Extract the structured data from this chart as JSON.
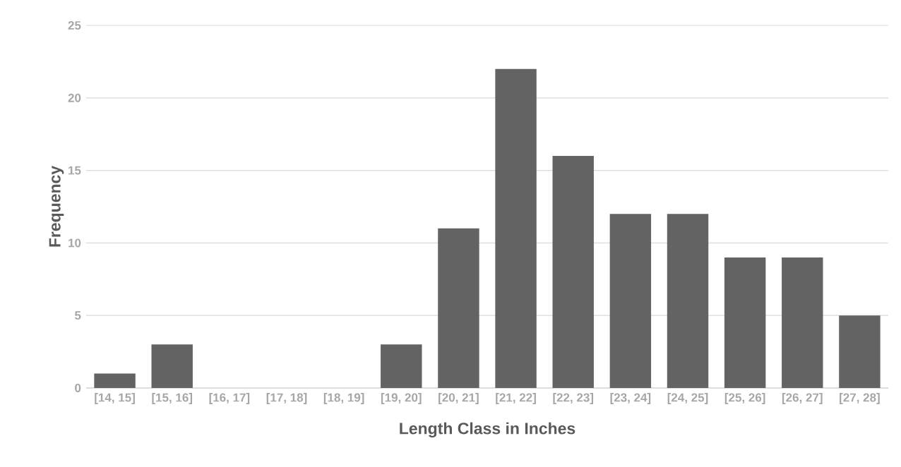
{
  "chart_data": {
    "type": "bar",
    "xlabel": "Length Class in Inches",
    "ylabel": "Frequency",
    "categories": [
      "[14, 15]",
      "[15, 16]",
      "[16, 17]",
      "[17, 18]",
      "[18, 19]",
      "[19, 20]",
      "[20, 21]",
      "[21, 22]",
      "[22, 23]",
      "[23, 24]",
      "[24, 25]",
      "[25, 26]",
      "[26, 27]",
      "[27, 28]"
    ],
    "values": [
      1,
      3,
      0,
      0,
      0,
      3,
      11,
      22,
      16,
      12,
      12,
      9,
      9,
      5
    ],
    "color": "#636363",
    "ylim": [
      0,
      25
    ],
    "yticks": [
      0,
      5,
      10,
      15,
      20,
      25
    ],
    "grid": "y"
  }
}
